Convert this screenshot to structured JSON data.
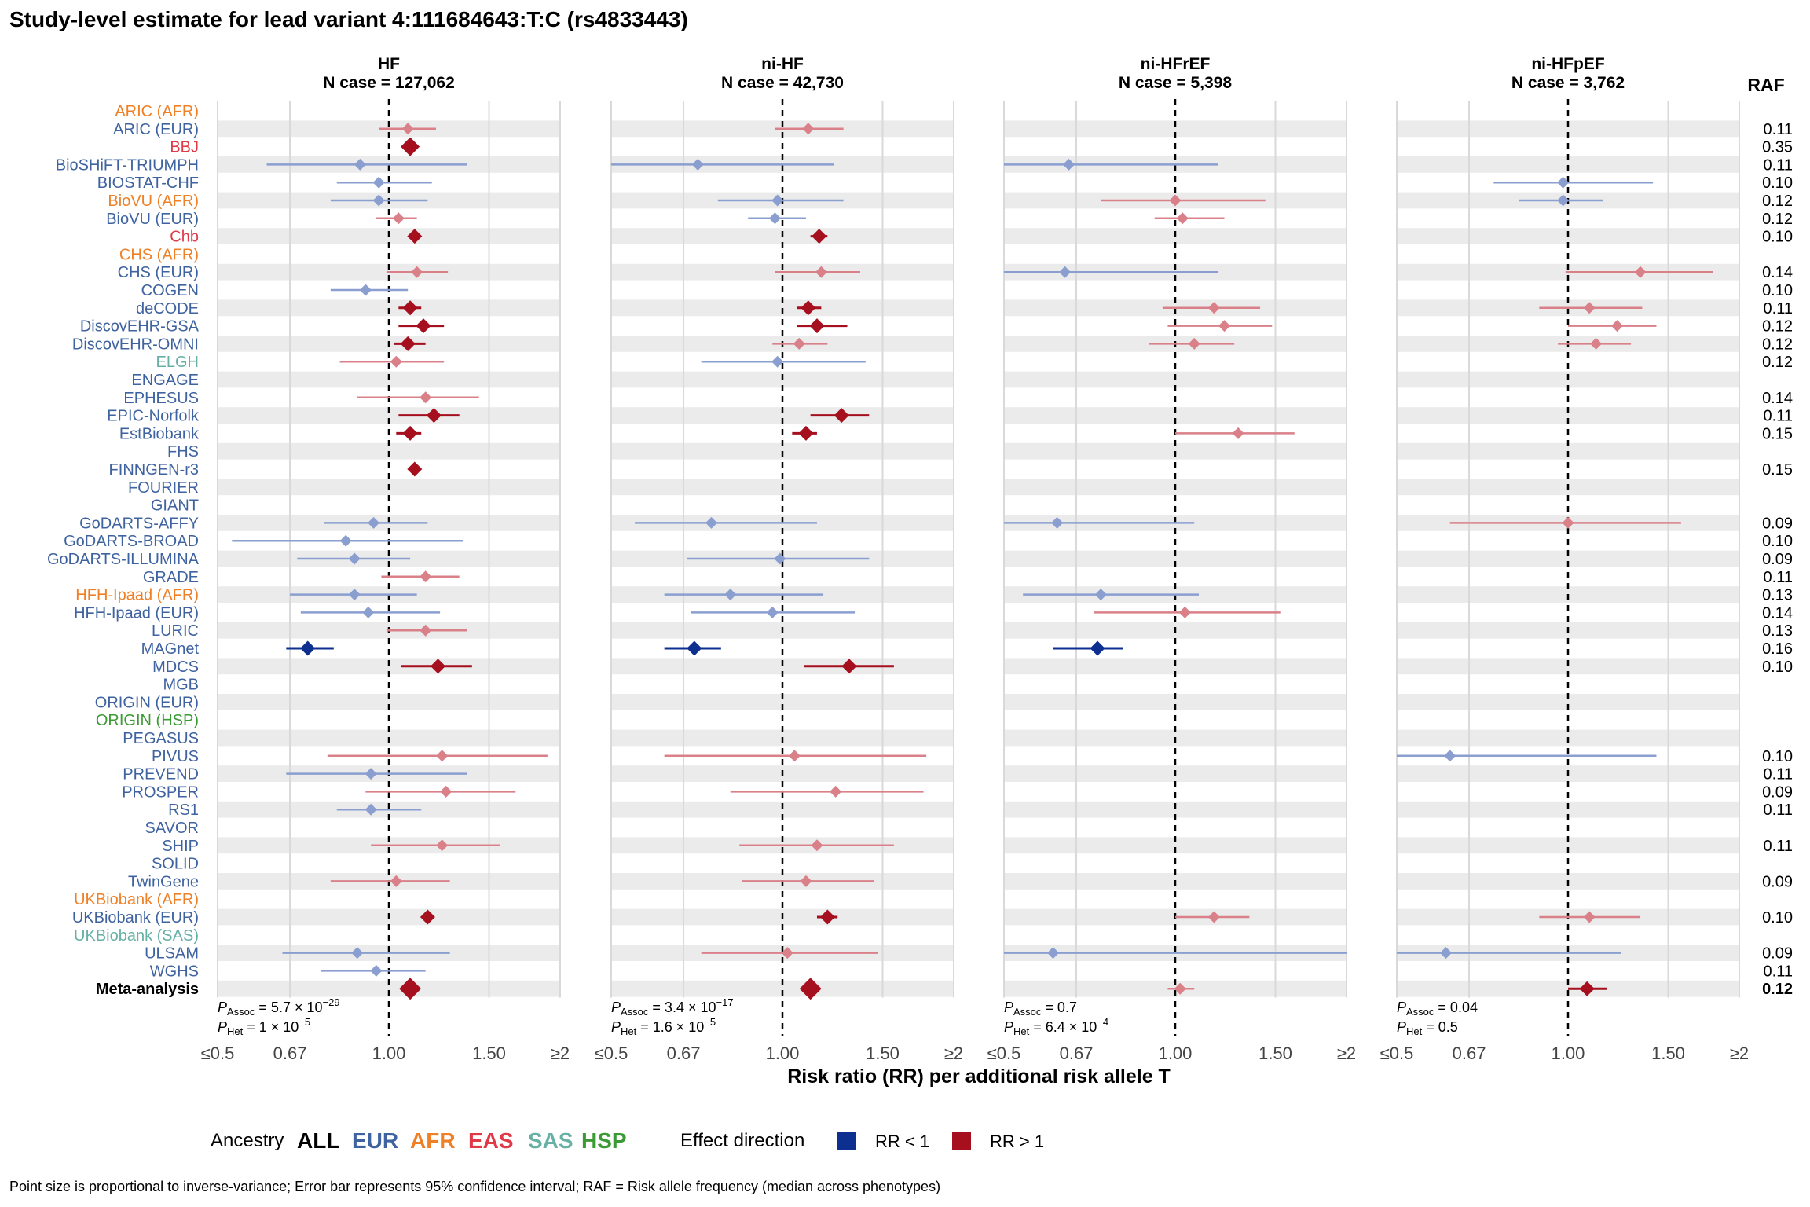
{
  "title": "Study-level estimate for lead variant 4:111684643:T:C (rs4833443)",
  "colors": {
    "ALL": "#000000",
    "EUR": "#3f63a0",
    "AFR": "#f08026",
    "EAS": "#e03a48",
    "SAS": "#66b0a6",
    "HSP": "#3c9a35",
    "rr_lt_1_strong": "#0d2f8f",
    "rr_lt_1_light": "#8a9fd0",
    "rr_gt_1_strong": "#a50f1e",
    "rr_gt_1_light": "#d98089",
    "stripe": "#ebebeb",
    "grid": "#d9d9d9"
  },
  "chart_data": {
    "type": "forest",
    "x_axis": {
      "label": "Risk ratio (RR) per additional risk allele T",
      "scale": "log",
      "ticks": [
        0.5,
        0.67,
        1.0,
        1.5,
        2.0
      ],
      "tick_labels": [
        "≤0.5",
        "0.67",
        "1.00",
        "1.50",
        "≥2"
      ],
      "reference_line": 1.0
    },
    "raf_header": "RAF",
    "panels": [
      {
        "title": "HF",
        "subtitle": "N case = 127,062",
        "p_assoc": "5.7 × 10",
        "p_assoc_exp": "−29",
        "p_het": "1 × 10",
        "p_het_exp": "−5"
      },
      {
        "title": "ni-HF",
        "subtitle": "N case = 42,730",
        "p_assoc": "3.4 × 10",
        "p_assoc_exp": "−17",
        "p_het": "1.6 × 10",
        "p_het_exp": "−5"
      },
      {
        "title": "ni-HFrEF",
        "subtitle": "N case = 5,398",
        "p_assoc": "0.7",
        "p_assoc_exp": "",
        "p_het": "6.4 × 10",
        "p_het_exp": "−4"
      },
      {
        "title": "ni-HFpEF",
        "subtitle": "N case = 3,762",
        "p_assoc": "0.04",
        "p_assoc_exp": "",
        "p_het": "0.5",
        "p_het_exp": ""
      }
    ],
    "p_labels": {
      "assoc_sub": "Assoc",
      "het_sub": "Het"
    },
    "studies": [
      {
        "name": "ARIC (AFR)",
        "ancestry": "AFR",
        "raf": "",
        "est": [
          null,
          null,
          null,
          null
        ]
      },
      {
        "name": "ARIC (EUR)",
        "ancestry": "EUR",
        "raf": "0.11",
        "est": [
          [
            1.08,
            0.96,
            1.21
          ],
          [
            1.11,
            0.97,
            1.28
          ],
          null,
          null
        ]
      },
      {
        "name": "BBJ",
        "ancestry": "EAS",
        "raf": "0.35",
        "est": [
          [
            1.09,
            1.09,
            1.09,
            "big"
          ],
          null,
          null,
          null
        ]
      },
      {
        "name": "BioSHiFT-TRIUMPH",
        "ancestry": "EUR",
        "raf": "0.11",
        "est": [
          [
            0.89,
            0.61,
            1.37
          ],
          [
            0.71,
            0.5,
            1.23
          ],
          [
            0.65,
            0.5,
            1.19
          ],
          null
        ]
      },
      {
        "name": "BIOSTAT-CHF",
        "ancestry": "EUR",
        "raf": "0.10",
        "est": [
          [
            0.96,
            0.81,
            1.19
          ],
          null,
          null,
          [
            0.98,
            0.74,
            1.41
          ]
        ]
      },
      {
        "name": "BioVU (AFR)",
        "ancestry": "AFR",
        "raf": "0.12",
        "est": [
          [
            0.96,
            0.79,
            1.17
          ],
          [
            0.98,
            0.77,
            1.28
          ],
          [
            1.0,
            0.74,
            1.44
          ],
          [
            0.98,
            0.82,
            1.15
          ]
        ]
      },
      {
        "name": "BioVU (EUR)",
        "ancestry": "EUR",
        "raf": "0.12",
        "est": [
          [
            1.04,
            0.95,
            1.12
          ],
          [
            0.97,
            0.87,
            1.1
          ],
          [
            1.03,
            0.92,
            1.22
          ],
          null
        ]
      },
      {
        "name": "Chb",
        "ancestry": "EAS",
        "raf": "0.10",
        "est": [
          [
            1.11,
            1.11,
            1.11,
            "strong"
          ],
          [
            1.16,
            1.12,
            1.2,
            "strong"
          ],
          null,
          null
        ]
      },
      {
        "name": "CHS (AFR)",
        "ancestry": "AFR",
        "raf": "",
        "est": [
          null,
          null,
          null,
          null
        ]
      },
      {
        "name": "CHS (EUR)",
        "ancestry": "EUR",
        "raf": "0.14",
        "est": [
          [
            1.12,
            0.99,
            1.27
          ],
          [
            1.17,
            0.97,
            1.37
          ],
          [
            0.64,
            0.5,
            1.19
          ],
          [
            1.34,
            0.99,
            1.8
          ]
        ]
      },
      {
        "name": "COGEN",
        "ancestry": "EUR",
        "raf": "0.10",
        "est": [
          [
            0.91,
            0.79,
            1.08
          ],
          null,
          null,
          null
        ]
      },
      {
        "name": "deCODE",
        "ancestry": "EUR",
        "raf": "0.11",
        "est": [
          [
            1.09,
            1.04,
            1.14,
            "strong"
          ],
          [
            1.11,
            1.06,
            1.17,
            "strong"
          ],
          [
            1.17,
            0.95,
            1.41
          ],
          [
            1.09,
            0.89,
            1.35
          ]
        ]
      },
      {
        "name": "DiscovEHR-GSA",
        "ancestry": "EUR",
        "raf": "0.12",
        "est": [
          [
            1.15,
            1.04,
            1.25,
            "strong"
          ],
          [
            1.15,
            1.06,
            1.3,
            "strong"
          ],
          [
            1.22,
            0.97,
            1.48
          ],
          [
            1.22,
            1.0,
            1.43
          ]
        ]
      },
      {
        "name": "DiscovEHR-OMNI",
        "ancestry": "EUR",
        "raf": "0.12",
        "est": [
          [
            1.08,
            1.02,
            1.16,
            "strong"
          ],
          [
            1.07,
            0.96,
            1.2
          ],
          [
            1.08,
            0.9,
            1.27
          ],
          [
            1.12,
            0.96,
            1.29
          ]
        ]
      },
      {
        "name": "ELGH",
        "ancestry": "SAS",
        "raf": "0.12",
        "est": [
          [
            1.03,
            0.82,
            1.25
          ],
          [
            0.98,
            0.72,
            1.4
          ],
          null,
          null
        ]
      },
      {
        "name": "ENGAGE",
        "ancestry": "EUR",
        "raf": "",
        "est": [
          null,
          null,
          null,
          null
        ]
      },
      {
        "name": "EPHESUS",
        "ancestry": "EUR",
        "raf": "0.14",
        "est": [
          [
            1.16,
            0.88,
            1.44
          ],
          null,
          null,
          null
        ]
      },
      {
        "name": "EPIC-Norfolk",
        "ancestry": "EUR",
        "raf": "0.11",
        "est": [
          [
            1.2,
            1.04,
            1.33,
            "strong"
          ],
          [
            1.27,
            1.12,
            1.42,
            "strong"
          ],
          null,
          null
        ]
      },
      {
        "name": "EstBiobank",
        "ancestry": "EUR",
        "raf": "0.15",
        "est": [
          [
            1.09,
            1.03,
            1.14,
            "strong"
          ],
          [
            1.1,
            1.04,
            1.15,
            "strong"
          ],
          [
            1.29,
            1.0,
            1.62
          ],
          null
        ]
      },
      {
        "name": "FHS",
        "ancestry": "EUR",
        "raf": "",
        "est": [
          null,
          null,
          null,
          null
        ]
      },
      {
        "name": "FINNGEN-r3",
        "ancestry": "EUR",
        "raf": "0.15",
        "est": [
          [
            1.11,
            1.11,
            1.11,
            "strong"
          ],
          null,
          null,
          null
        ]
      },
      {
        "name": "FOURIER",
        "ancestry": "EUR",
        "raf": "",
        "est": [
          null,
          null,
          null,
          null
        ]
      },
      {
        "name": "GIANT",
        "ancestry": "EUR",
        "raf": "",
        "est": [
          null,
          null,
          null,
          null
        ]
      },
      {
        "name": "GoDARTS-AFFY",
        "ancestry": "EUR",
        "raf": "0.09",
        "est": [
          [
            0.94,
            0.77,
            1.17
          ],
          [
            0.75,
            0.55,
            1.15
          ],
          [
            0.62,
            0.5,
            1.08
          ],
          [
            1.0,
            0.62,
            1.58
          ]
        ]
      },
      {
        "name": "GoDARTS-BROAD",
        "ancestry": "EUR",
        "raf": "0.10",
        "est": [
          [
            0.84,
            0.53,
            1.35
          ],
          null,
          null,
          null
        ]
      },
      {
        "name": "GoDARTS-ILLUMINA",
        "ancestry": "EUR",
        "raf": "0.09",
        "est": [
          [
            0.87,
            0.69,
            1.09
          ],
          [
            0.99,
            0.68,
            1.42
          ],
          null,
          null
        ]
      },
      {
        "name": "GRADE",
        "ancestry": "EUR",
        "raf": "0.11",
        "est": [
          [
            1.16,
            0.97,
            1.33
          ],
          null,
          null,
          null
        ]
      },
      {
        "name": "HFH-Ipaad (AFR)",
        "ancestry": "AFR",
        "raf": "0.13",
        "est": [
          [
            0.87,
            0.67,
            1.12
          ],
          [
            0.81,
            0.62,
            1.18
          ],
          [
            0.74,
            0.54,
            1.1
          ],
          null
        ]
      },
      {
        "name": "HFH-Ipaad (EUR)",
        "ancestry": "EUR",
        "raf": "0.14",
        "est": [
          [
            0.92,
            0.7,
            1.23
          ],
          [
            0.96,
            0.69,
            1.34
          ],
          [
            1.04,
            0.72,
            1.53
          ],
          null
        ]
      },
      {
        "name": "LURIC",
        "ancestry": "EUR",
        "raf": "0.13",
        "est": [
          [
            1.16,
            0.99,
            1.37
          ],
          null,
          null,
          null
        ]
      },
      {
        "name": "MAGnet",
        "ancestry": "EUR",
        "raf": "0.16",
        "est": [
          [
            0.72,
            0.66,
            0.8,
            "strong"
          ],
          [
            0.7,
            0.62,
            0.78,
            "strong"
          ],
          [
            0.73,
            0.61,
            0.81,
            "strong"
          ],
          null
        ]
      },
      {
        "name": "MDCS",
        "ancestry": "EUR",
        "raf": "0.10",
        "est": [
          [
            1.22,
            1.05,
            1.4,
            "strong"
          ],
          [
            1.31,
            1.09,
            1.57,
            "strong"
          ],
          null,
          null
        ]
      },
      {
        "name": "MGB",
        "ancestry": "EUR",
        "raf": "",
        "est": [
          null,
          null,
          null,
          null
        ]
      },
      {
        "name": "ORIGIN (EUR)",
        "ancestry": "EUR",
        "raf": "",
        "est": [
          null,
          null,
          null,
          null
        ]
      },
      {
        "name": "ORIGIN (HSP)",
        "ancestry": "HSP",
        "raf": "",
        "est": [
          null,
          null,
          null,
          null
        ]
      },
      {
        "name": "PEGASUS",
        "ancestry": "EUR",
        "raf": "",
        "est": [
          null,
          null,
          null,
          null
        ]
      },
      {
        "name": "PIVUS",
        "ancestry": "EUR",
        "raf": "0.10",
        "est": [
          [
            1.24,
            0.78,
            1.9
          ],
          [
            1.05,
            0.62,
            1.79
          ],
          null,
          [
            0.62,
            0.5,
            1.43
          ]
        ]
      },
      {
        "name": "PREVEND",
        "ancestry": "EUR",
        "raf": "0.11",
        "est": [
          [
            0.93,
            0.66,
            1.37
          ],
          null,
          null,
          null
        ]
      },
      {
        "name": "PROSPER",
        "ancestry": "EUR",
        "raf": "0.09",
        "est": [
          [
            1.26,
            0.91,
            1.67
          ],
          [
            1.24,
            0.81,
            1.77
          ],
          null,
          null
        ]
      },
      {
        "name": "RS1",
        "ancestry": "EUR",
        "raf": "0.11",
        "est": [
          [
            0.93,
            0.81,
            1.14
          ],
          null,
          null,
          null
        ]
      },
      {
        "name": "SAVOR",
        "ancestry": "EUR",
        "raf": "",
        "est": [
          null,
          null,
          null,
          null
        ]
      },
      {
        "name": "SHIP",
        "ancestry": "EUR",
        "raf": "0.11",
        "est": [
          [
            1.24,
            0.93,
            1.57
          ],
          [
            1.15,
            0.84,
            1.57
          ],
          null,
          null
        ]
      },
      {
        "name": "SOLID",
        "ancestry": "EUR",
        "raf": "",
        "est": [
          null,
          null,
          null,
          null
        ]
      },
      {
        "name": "TwinGene",
        "ancestry": "EUR",
        "raf": "0.09",
        "est": [
          [
            1.03,
            0.79,
            1.28
          ],
          [
            1.1,
            0.85,
            1.45
          ],
          null,
          null
        ]
      },
      {
        "name": "UKBiobank (AFR)",
        "ancestry": "AFR",
        "raf": "",
        "est": [
          null,
          null,
          null,
          null
        ]
      },
      {
        "name": "UKBiobank (EUR)",
        "ancestry": "EUR",
        "raf": "0.10",
        "est": [
          [
            1.17,
            1.17,
            1.17,
            "strong"
          ],
          [
            1.2,
            1.15,
            1.25,
            "strong"
          ],
          [
            1.17,
            1.0,
            1.35
          ],
          [
            1.09,
            0.89,
            1.34
          ]
        ]
      },
      {
        "name": "UKBiobank (SAS)",
        "ancestry": "SAS",
        "raf": "",
        "est": [
          null,
          null,
          null,
          null
        ]
      },
      {
        "name": "ULSAM",
        "ancestry": "EUR",
        "raf": "0.09",
        "est": [
          [
            0.88,
            0.65,
            1.28
          ],
          [
            1.02,
            0.72,
            1.47
          ],
          [
            0.61,
            0.5,
            2.0
          ],
          [
            0.61,
            0.5,
            1.24
          ]
        ]
      },
      {
        "name": "WGHS",
        "ancestry": "EUR",
        "raf": "0.11",
        "est": [
          [
            0.95,
            0.76,
            1.16
          ],
          null,
          null,
          null
        ]
      },
      {
        "name": "Meta-analysis",
        "ancestry": "ALL",
        "raf": "0.12",
        "meta": true,
        "est": [
          [
            1.09,
            1.09,
            1.09,
            "meta"
          ],
          [
            1.12,
            1.12,
            1.12,
            "meta"
          ],
          [
            1.02,
            0.97,
            1.08
          ],
          [
            1.08,
            1.0,
            1.17,
            "strong"
          ]
        ]
      }
    ]
  },
  "legend": {
    "ancestry_label": "Ancestry",
    "ancestry_items": [
      "ALL",
      "EUR",
      "AFR",
      "EAS",
      "SAS",
      "HSP"
    ],
    "effect_label": "Effect direction",
    "effect_items": [
      {
        "label": "RR < 1",
        "color": "#0d2f8f"
      },
      {
        "label": "RR > 1",
        "color": "#a50f1e"
      }
    ]
  },
  "footnote": "Point size is proportional to inverse-variance; Error bar represents 95% confidence interval; RAF = Risk allele frequency (median across phenotypes)"
}
